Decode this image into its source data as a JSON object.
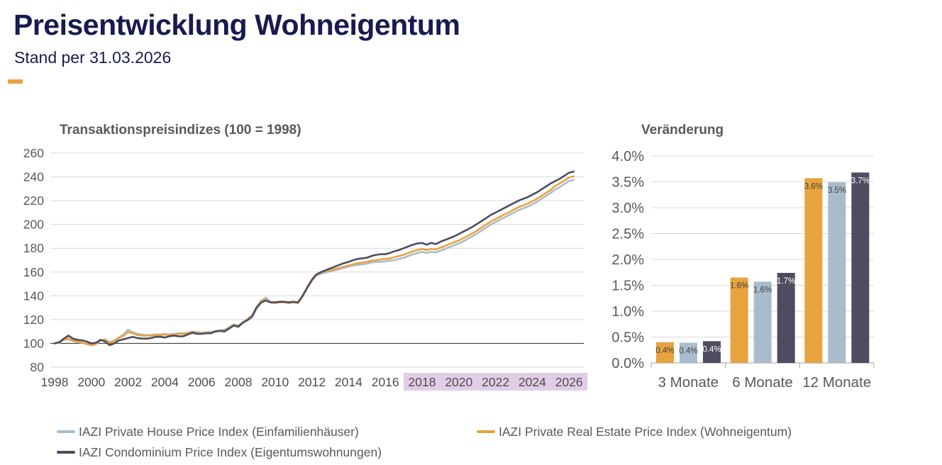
{
  "header": {
    "title": "Preisentwicklung Wohneigentum",
    "subtitle": "Stand per 31.03.2026"
  },
  "colors": {
    "navy": "#171B4F",
    "orange": "#E8A33E",
    "light_blue": "#A9BCCC",
    "dark_slate": "#4D4C60",
    "gray_text": "#595959",
    "grid": "#D9D9D9",
    "baseline": "#404040",
    "axis": "#BFBFBF",
    "highlight": "#E2CDE7",
    "bar_label_dark": "#404040",
    "bar_label_light": "#FFFFFF"
  },
  "chart_data": [
    {
      "type": "line",
      "title": "Transaktionspreisindizes (100 = 1998)",
      "ylim": [
        80,
        260
      ],
      "yticks": [
        80,
        100,
        120,
        140,
        160,
        180,
        200,
        220,
        240,
        260
      ],
      "xticks": [
        1998,
        2000,
        2002,
        2004,
        2006,
        2008,
        2010,
        2012,
        2014,
        2016,
        2018,
        2020,
        2022,
        2024,
        2026
      ],
      "highlighted_xticks_from": 2018,
      "baseline_value": 100,
      "grid": true,
      "x_start": 1998,
      "x_step": 0.25,
      "x_end": 2026.25,
      "series": [
        {
          "name": "IAZI Private House Price Index (Einfamilienhäuser)",
          "color_key": "light_blue",
          "values": [
            100,
            100.5,
            103,
            103.5,
            102,
            101,
            100.5,
            99.5,
            98.5,
            99.5,
            102.5,
            103.5,
            101,
            102.5,
            105,
            107.5,
            111.5,
            109.5,
            108,
            107.5,
            107,
            107,
            107.5,
            107.5,
            108,
            107.5,
            108,
            108.5,
            108.5,
            109,
            110,
            109.5,
            109,
            109.5,
            109.5,
            110.5,
            111,
            111.5,
            113.5,
            116,
            115,
            118,
            120.5,
            124,
            131,
            136,
            138.5,
            135,
            134.5,
            134.5,
            135,
            134.5,
            134.5,
            134,
            140,
            147,
            153,
            157,
            158.5,
            159.5,
            160.5,
            161.5,
            162.5,
            163.5,
            164.5,
            165.5,
            166,
            166.5,
            167,
            168,
            168.5,
            168.5,
            169,
            169.5,
            170,
            171,
            172,
            173.5,
            175,
            176,
            177,
            176,
            177,
            176.5,
            178,
            179.5,
            181,
            182.5,
            184,
            186,
            188,
            190,
            192.5,
            195,
            197.5,
            200,
            202,
            204,
            206,
            208,
            210,
            212,
            213.5,
            215,
            217,
            219,
            221.5,
            224,
            226.5,
            229.5,
            231.5,
            234,
            236.5,
            237.5
          ]
        },
        {
          "name": "IAZI Private Real Estate Price Index (Wohneigentum)",
          "color_key": "orange",
          "values": [
            100,
            100.5,
            103.5,
            104,
            102.5,
            101.5,
            100.5,
            99.5,
            98.5,
            99.5,
            102.5,
            103,
            100.5,
            102,
            104.5,
            106.5,
            109.5,
            108.5,
            107,
            106.5,
            106.5,
            106.5,
            107,
            107,
            107.5,
            107,
            107.5,
            108,
            108,
            108.5,
            109.5,
            109,
            108.5,
            109,
            109,
            110,
            110.5,
            111,
            113,
            115.5,
            114.5,
            117.5,
            120,
            123.5,
            130.5,
            135.5,
            137,
            134.5,
            134,
            134.5,
            134.5,
            134,
            134.5,
            134,
            139.5,
            146.5,
            152.5,
            157.5,
            159.5,
            160.5,
            161.5,
            162.5,
            163.5,
            164.5,
            165.5,
            166.5,
            167.5,
            168,
            168.5,
            169.5,
            170,
            170.5,
            171,
            171.5,
            172.5,
            173.5,
            174.5,
            176,
            177.5,
            178.5,
            179.5,
            178.5,
            179.5,
            179,
            180.5,
            182,
            183.5,
            185,
            186.5,
            188.5,
            190.5,
            192.5,
            195,
            197.5,
            200,
            202.5,
            204.5,
            206.5,
            208.5,
            210.5,
            212.5,
            214.5,
            216,
            217.5,
            219.5,
            221.5,
            224,
            226.5,
            229,
            232.5,
            234.5,
            237,
            239.5,
            240.5
          ]
        },
        {
          "name": "IAZI Condominium Price Index (Eigentumswohnungen)",
          "color_key": "dark_slate",
          "values": [
            100,
            101,
            104,
            106.5,
            104,
            103,
            102.5,
            101.5,
            100,
            100.5,
            103,
            101.5,
            98.5,
            100,
            102.5,
            103.5,
            104.5,
            105.5,
            104.5,
            104,
            104,
            104.5,
            105.5,
            105.5,
            105,
            106,
            106.5,
            106,
            106,
            107.5,
            109,
            108,
            108,
            108.5,
            108.5,
            110,
            110.5,
            110,
            112.5,
            115,
            114,
            117.5,
            119.5,
            122.5,
            130,
            134.5,
            136,
            134.5,
            134.5,
            135,
            135,
            134.5,
            135,
            134.5,
            140,
            147,
            153.5,
            158,
            160,
            161.5,
            163,
            164.5,
            166,
            167.5,
            168.5,
            170,
            171,
            171.5,
            172,
            173.5,
            174.5,
            175,
            175,
            176,
            177.5,
            178.5,
            180,
            181.5,
            183,
            184,
            184.5,
            183,
            184.5,
            183.5,
            185.5,
            187,
            188.5,
            190,
            192,
            194,
            196,
            198,
            200.5,
            203,
            205.5,
            208,
            210,
            212,
            214,
            216,
            218,
            220,
            221.5,
            223,
            225,
            227,
            229.5,
            232,
            234.5,
            236.5,
            238.5,
            241,
            243.5,
            244.5
          ]
        }
      ]
    },
    {
      "type": "bar",
      "title": "Veränderung",
      "ylim": [
        0,
        4
      ],
      "ytick_step": 0.5,
      "yticks": [
        0,
        0.5,
        1,
        1.5,
        2,
        2.5,
        3,
        3.5,
        4
      ],
      "categories": [
        "3 Monate",
        "6 Monate",
        "12 Monate"
      ],
      "series": [
        {
          "name": "IAZI Private Real Estate Price Index (Wohneigentum)",
          "color_key": "orange",
          "values": [
            0.4,
            1.6,
            3.6
          ],
          "values_exact": [
            0.4,
            1.65,
            3.57
          ],
          "labels": [
            "0.4%",
            "1.6%",
            "3.6%"
          ],
          "label_color_key": "bar_label_dark"
        },
        {
          "name": "IAZI Private House Price Index (Einfamilienhäuser)",
          "color_key": "light_blue",
          "values": [
            0.4,
            1.6,
            3.5
          ],
          "values_exact": [
            0.39,
            1.57,
            3.49
          ],
          "labels": [
            "0.4%",
            "1.6%",
            "3.5%"
          ],
          "label_color_key": "bar_label_dark"
        },
        {
          "name": "IAZI Condominium Price Index (Eigentumswohnungen)",
          "color_key": "dark_slate",
          "values": [
            0.4,
            1.7,
            3.7
          ],
          "values_exact": [
            0.42,
            1.74,
            3.68
          ],
          "labels": [
            "0.4%",
            "1.7%",
            "3.7%"
          ],
          "label_color_key": "bar_label_light"
        }
      ]
    }
  ],
  "legend": {
    "items": [
      {
        "label": "IAZI Private House Price Index (Einfamilienhäuser)",
        "color_key": "light_blue",
        "row": 1,
        "col": 1
      },
      {
        "label": "IAZI Private Real Estate Price Index (Wohneigentum)",
        "color_key": "orange",
        "row": 1,
        "col": 2
      },
      {
        "label": "IAZI Condominium Price Index (Eigentumswohnungen)",
        "color_key": "dark_slate",
        "row": 2,
        "col": 1
      }
    ]
  }
}
